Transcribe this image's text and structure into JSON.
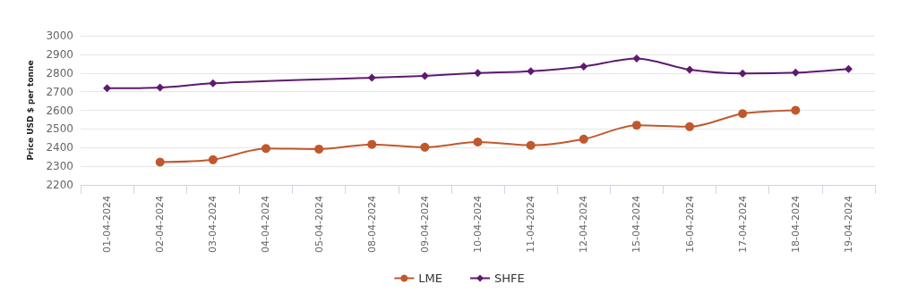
{
  "chart_data": {
    "type": "line",
    "ylabel": "Price USD $ per tonne",
    "categories": [
      "01-04-2024",
      "02-04-2024",
      "03-04-2024",
      "04-04-2024",
      "05-04-2024",
      "08-04-2024",
      "09-04-2024",
      "10-04-2024",
      "11-04-2024",
      "12-04-2024",
      "15-04-2024",
      "16-04-2024",
      "17-04-2024",
      "18-04-2024",
      "19-04-2024"
    ],
    "series": [
      {
        "name": "LME",
        "color": "#c0582e",
        "marker": "circle",
        "values": [
          null,
          2322,
          2335,
          2395,
          2392,
          2417,
          2402,
          2430,
          2412,
          2445,
          2520,
          2512,
          2582,
          2600,
          null
        ]
      },
      {
        "name": "SHFE",
        "color": "#5e1a6e",
        "marker": "diamond",
        "values": [
          2718,
          2722,
          2745,
          null,
          null,
          2775,
          2785,
          2800,
          2810,
          2835,
          2878,
          2818,
          2798,
          2802,
          2822
        ]
      }
    ],
    "ylim": [
      2200,
      3000
    ],
    "yticks": [
      2200,
      2300,
      2400,
      2500,
      2600,
      2700,
      2800,
      2900,
      3000
    ],
    "grid": "y",
    "legend": "bottom"
  }
}
